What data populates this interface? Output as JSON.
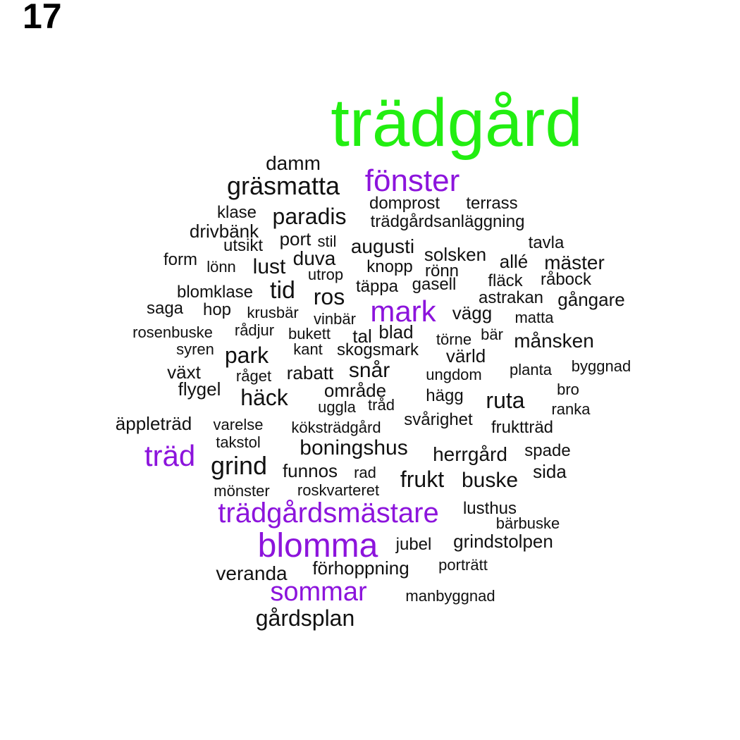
{
  "page_number": "17",
  "colors": {
    "green": "#22ee11",
    "purple": "#8c14dc",
    "black": "#111111"
  },
  "words": [
    {
      "text": "trädgård",
      "color": "green"
    },
    {
      "text": "fönster",
      "color": "purple"
    },
    {
      "text": "mark",
      "color": "purple"
    },
    {
      "text": "träd",
      "color": "purple"
    },
    {
      "text": "trädgårdsmästare",
      "color": "purple"
    },
    {
      "text": "blomma",
      "color": "purple"
    },
    {
      "text": "sommar",
      "color": "purple"
    },
    {
      "text": "damm",
      "color": "black"
    },
    {
      "text": "gräsmatta",
      "color": "black"
    },
    {
      "text": "domprost",
      "color": "black"
    },
    {
      "text": "terrass",
      "color": "black"
    },
    {
      "text": "klase",
      "color": "black"
    },
    {
      "text": "paradis",
      "color": "black"
    },
    {
      "text": "trädgårdsanläggning",
      "color": "black"
    },
    {
      "text": "drivbänk",
      "color": "black"
    },
    {
      "text": "port",
      "color": "black"
    },
    {
      "text": "stil",
      "color": "black"
    },
    {
      "text": "tavla",
      "color": "black"
    },
    {
      "text": "utsikt",
      "color": "black"
    },
    {
      "text": "augusti",
      "color": "black"
    },
    {
      "text": "solsken",
      "color": "black"
    },
    {
      "text": "form",
      "color": "black"
    },
    {
      "text": "duva",
      "color": "black"
    },
    {
      "text": "allé",
      "color": "black"
    },
    {
      "text": "mäster",
      "color": "black"
    },
    {
      "text": "lönn",
      "color": "black"
    },
    {
      "text": "lust",
      "color": "black"
    },
    {
      "text": "knopp",
      "color": "black"
    },
    {
      "text": "rönn",
      "color": "black"
    },
    {
      "text": "utrop",
      "color": "black"
    },
    {
      "text": "fläck",
      "color": "black"
    },
    {
      "text": "råbock",
      "color": "black"
    },
    {
      "text": "gasell",
      "color": "black"
    },
    {
      "text": "blomklase",
      "color": "black"
    },
    {
      "text": "tid",
      "color": "black"
    },
    {
      "text": "täppa",
      "color": "black"
    },
    {
      "text": "ros",
      "color": "black"
    },
    {
      "text": "astrakan",
      "color": "black"
    },
    {
      "text": "gångare",
      "color": "black"
    },
    {
      "text": "saga",
      "color": "black"
    },
    {
      "text": "hop",
      "color": "black"
    },
    {
      "text": "krusbär",
      "color": "black"
    },
    {
      "text": "vägg",
      "color": "black"
    },
    {
      "text": "vinbär",
      "color": "black"
    },
    {
      "text": "matta",
      "color": "black"
    },
    {
      "text": "rosenbuske",
      "color": "black"
    },
    {
      "text": "rådjur",
      "color": "black"
    },
    {
      "text": "bukett",
      "color": "black"
    },
    {
      "text": "tal",
      "color": "black"
    },
    {
      "text": "blad",
      "color": "black"
    },
    {
      "text": "törne",
      "color": "black"
    },
    {
      "text": "bär",
      "color": "black"
    },
    {
      "text": "månsken",
      "color": "black"
    },
    {
      "text": "syren",
      "color": "black"
    },
    {
      "text": "park",
      "color": "black"
    },
    {
      "text": "kant",
      "color": "black"
    },
    {
      "text": "skogsmark",
      "color": "black"
    },
    {
      "text": "värld",
      "color": "black"
    },
    {
      "text": "växt",
      "color": "black"
    },
    {
      "text": "råget",
      "color": "black"
    },
    {
      "text": "rabatt",
      "color": "black"
    },
    {
      "text": "snår",
      "color": "black"
    },
    {
      "text": "ungdom",
      "color": "black"
    },
    {
      "text": "planta",
      "color": "black"
    },
    {
      "text": "byggnad",
      "color": "black"
    },
    {
      "text": "flygel",
      "color": "black"
    },
    {
      "text": "häck",
      "color": "black"
    },
    {
      "text": "område",
      "color": "black"
    },
    {
      "text": "hägg",
      "color": "black"
    },
    {
      "text": "bro",
      "color": "black"
    },
    {
      "text": "uggla",
      "color": "black"
    },
    {
      "text": "tråd",
      "color": "black"
    },
    {
      "text": "ruta",
      "color": "black"
    },
    {
      "text": "ranka",
      "color": "black"
    },
    {
      "text": "äppleträd",
      "color": "black"
    },
    {
      "text": "varelse",
      "color": "black"
    },
    {
      "text": "köksträdgård",
      "color": "black"
    },
    {
      "text": "svårighet",
      "color": "black"
    },
    {
      "text": "fruktträd",
      "color": "black"
    },
    {
      "text": "takstol",
      "color": "black"
    },
    {
      "text": "boningshus",
      "color": "black"
    },
    {
      "text": "herrgård",
      "color": "black"
    },
    {
      "text": "spade",
      "color": "black"
    },
    {
      "text": "grind",
      "color": "black"
    },
    {
      "text": "funnos",
      "color": "black"
    },
    {
      "text": "rad",
      "color": "black"
    },
    {
      "text": "sida",
      "color": "black"
    },
    {
      "text": "frukt",
      "color": "black"
    },
    {
      "text": "buske",
      "color": "black"
    },
    {
      "text": "mönster",
      "color": "black"
    },
    {
      "text": "roskvarteret",
      "color": "black"
    },
    {
      "text": "lusthus",
      "color": "black"
    },
    {
      "text": "bärbuske",
      "color": "black"
    },
    {
      "text": "jubel",
      "color": "black"
    },
    {
      "text": "grindstolpen",
      "color": "black"
    },
    {
      "text": "veranda",
      "color": "black"
    },
    {
      "text": "förhoppning",
      "color": "black"
    },
    {
      "text": "porträtt",
      "color": "black"
    },
    {
      "text": "manbyggnad",
      "color": "black"
    },
    {
      "text": "gårdsplan",
      "color": "black"
    }
  ]
}
